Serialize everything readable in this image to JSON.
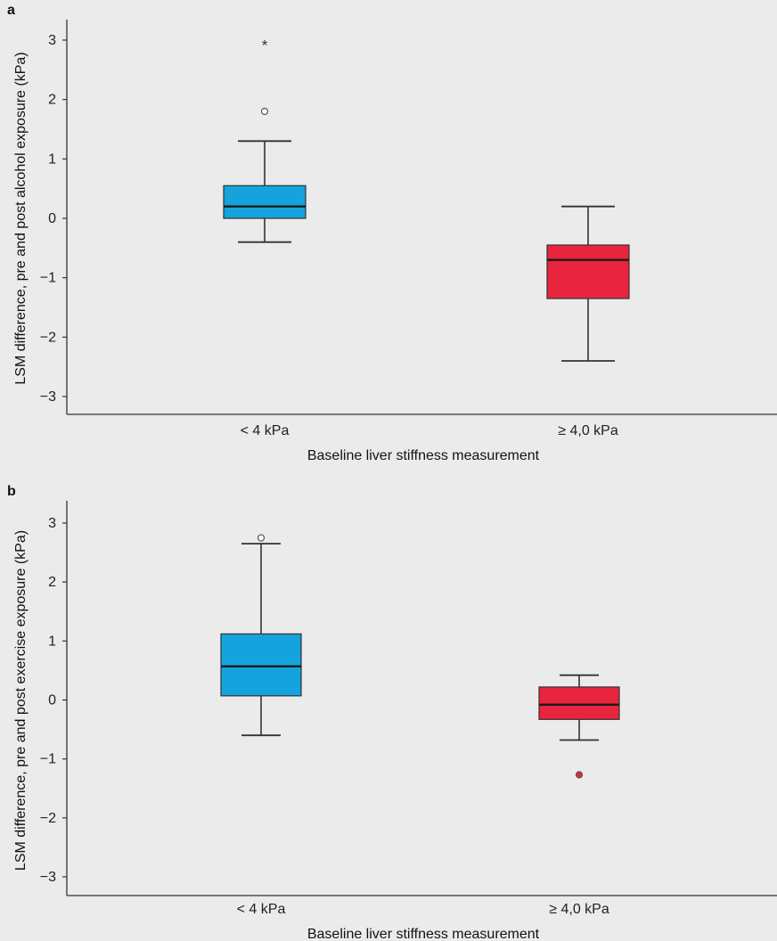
{
  "chart_data": [
    {
      "type": "box",
      "panel_label": "a",
      "ylabel": "LSM difference, pre and post alcohol exposure (kPa)",
      "xlabel": "Baseline liver stiffness measurement",
      "ylim": [
        -3.3,
        3.3
      ],
      "yticks": [
        3,
        2,
        1,
        0,
        -1,
        -2,
        -3
      ],
      "ytick_labels": [
        "3",
        "2",
        "1",
        "0",
        "−1",
        "−2",
        "−3"
      ],
      "grid": false,
      "categories": [
        {
          "label": "< 4 kPa",
          "color": "#14a3dc",
          "min": -0.4,
          "q1": 0.0,
          "median": 0.2,
          "q3": 0.55,
          "max": 1.3,
          "outliers": [
            {
              "value": 1.8,
              "marker": "circle",
              "color": "#ffffff"
            }
          ],
          "extremes": [
            {
              "value": 2.95,
              "marker": "*"
            }
          ]
        },
        {
          "label": "≥ 4,0 kPa",
          "color": "#e8243e",
          "min": -2.4,
          "q1": -1.35,
          "median": -0.7,
          "q3": -0.45,
          "max": 0.2,
          "outliers": [],
          "extremes": []
        }
      ]
    },
    {
      "type": "box",
      "panel_label": "b",
      "ylabel": "LSM difference, pre and post exercise exposure (kPa)",
      "xlabel": "Baseline liver stiffness measurement",
      "ylim": [
        -3.3,
        3.3
      ],
      "yticks": [
        3,
        2,
        1,
        0,
        -1,
        -2,
        -3
      ],
      "ytick_labels": [
        "3",
        "2",
        "1",
        "0",
        "−1",
        "−2",
        "−3"
      ],
      "grid": false,
      "categories": [
        {
          "label": "< 4 kPa",
          "color": "#14a3dc",
          "min": -0.6,
          "q1": 0.07,
          "median": 0.57,
          "q3": 1.12,
          "max": 2.65,
          "outliers": [
            {
              "value": 2.75,
              "marker": "circle",
              "color": "#ffffff"
            }
          ],
          "extremes": []
        },
        {
          "label": "≥ 4,0 kPa",
          "color": "#e8243e",
          "min": -0.68,
          "q1": -0.33,
          "median": -0.08,
          "q3": 0.22,
          "max": 0.42,
          "outliers": [
            {
              "value": -1.27,
              "marker": "circle",
              "color": "#e8243e"
            }
          ],
          "extremes": []
        }
      ]
    }
  ]
}
